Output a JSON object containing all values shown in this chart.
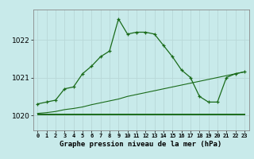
{
  "title": "Graphe pression niveau de la mer (hPa)",
  "bg_color": "#c8eaea",
  "grid_color": "#b8d8d8",
  "line_color": "#1a6b1a",
  "x_labels": [
    "0",
    "1",
    "2",
    "3",
    "4",
    "5",
    "6",
    "7",
    "8",
    "9",
    "10",
    "11",
    "12",
    "13",
    "14",
    "15",
    "16",
    "17",
    "18",
    "19",
    "20",
    "21",
    "22",
    "23"
  ],
  "ylim": [
    1019.6,
    1022.8
  ],
  "yticks": [
    1020,
    1021,
    1022
  ],
  "main_series": [
    1020.3,
    1020.35,
    1020.4,
    1020.7,
    1020.75,
    1021.1,
    1021.3,
    1021.55,
    1021.7,
    1022.55,
    1022.15,
    1022.2,
    1022.2,
    1022.15,
    1021.85,
    1021.55,
    1021.2,
    1021.0,
    1020.5,
    1020.35,
    1020.35,
    1021.0,
    1021.1,
    1021.15
  ],
  "slow_rise_series": [
    1020.05,
    1020.07,
    1020.1,
    1020.15,
    1020.18,
    1020.22,
    1020.28,
    1020.33,
    1020.38,
    1020.43,
    1020.5,
    1020.55,
    1020.6,
    1020.65,
    1020.7,
    1020.75,
    1020.8,
    1020.85,
    1020.9,
    1020.95,
    1021.0,
    1021.05,
    1021.1,
    1021.15
  ],
  "flat_series1": [
    1020.05,
    1020.05,
    1020.05,
    1020.05,
    1020.05,
    1020.05,
    1020.05,
    1020.05,
    1020.05,
    1020.05,
    1020.05,
    1020.05,
    1020.05,
    1020.05,
    1020.05,
    1020.05,
    1020.05,
    1020.05,
    1020.05,
    1020.05,
    1020.05,
    1020.05,
    1020.05,
    1020.05
  ],
  "flat_series2": [
    1020.02,
    1020.02,
    1020.02,
    1020.02,
    1020.02,
    1020.02,
    1020.02,
    1020.02,
    1020.02,
    1020.02,
    1020.02,
    1020.02,
    1020.02,
    1020.02,
    1020.02,
    1020.02,
    1020.02,
    1020.02,
    1020.02,
    1020.02,
    1020.02,
    1020.02,
    1020.02,
    1020.02
  ]
}
